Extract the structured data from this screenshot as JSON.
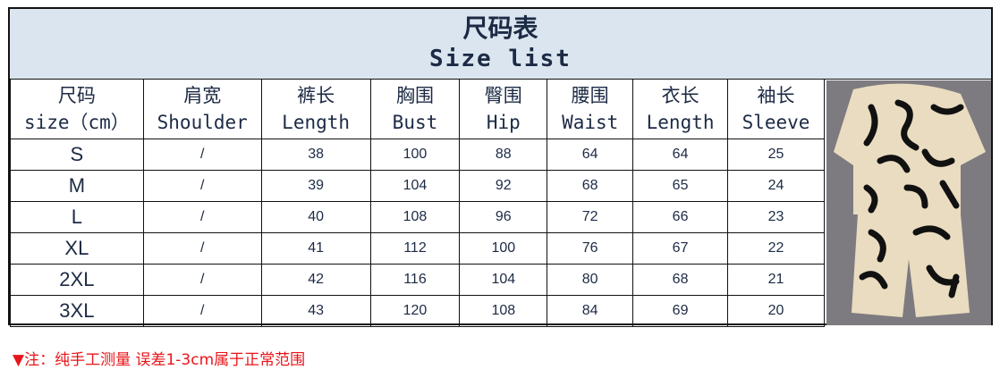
{
  "title_cn": "尺码表",
  "title_en": "Size list",
  "columns": [
    {
      "cn": "尺码",
      "en": "size（cm）"
    },
    {
      "cn": "肩宽",
      "en": "Shoulder"
    },
    {
      "cn": "裤长",
      "en": "Length"
    },
    {
      "cn": "胸围",
      "en": "Bust"
    },
    {
      "cn": "臀围",
      "en": "Hip"
    },
    {
      "cn": "腰围",
      "en": "Waist"
    },
    {
      "cn": "衣长",
      "en": "Length"
    },
    {
      "cn": "袖长",
      "en": "Sleeve"
    }
  ],
  "rows": [
    [
      "S",
      "/",
      "38",
      "100",
      "88",
      "64",
      "64",
      "25"
    ],
    [
      "M",
      "/",
      "39",
      "104",
      "92",
      "68",
      "65",
      "24"
    ],
    [
      "L",
      "/",
      "40",
      "108",
      "96",
      "72",
      "66",
      "23"
    ],
    [
      "XL",
      "/",
      "41",
      "112",
      "100",
      "76",
      "67",
      "22"
    ],
    [
      "2XL",
      "/",
      "42",
      "116",
      "104",
      "80",
      "68",
      "21"
    ],
    [
      "3XL",
      "/",
      "43",
      "120",
      "108",
      "84",
      "69",
      "20"
    ]
  ],
  "note": "▼注：纯手工测量 误差1-3cm属于正常范围",
  "colors": {
    "header_bg": "#dbe5f0",
    "note": "#e8141a",
    "pattern_bg": "#e9dcc0"
  }
}
